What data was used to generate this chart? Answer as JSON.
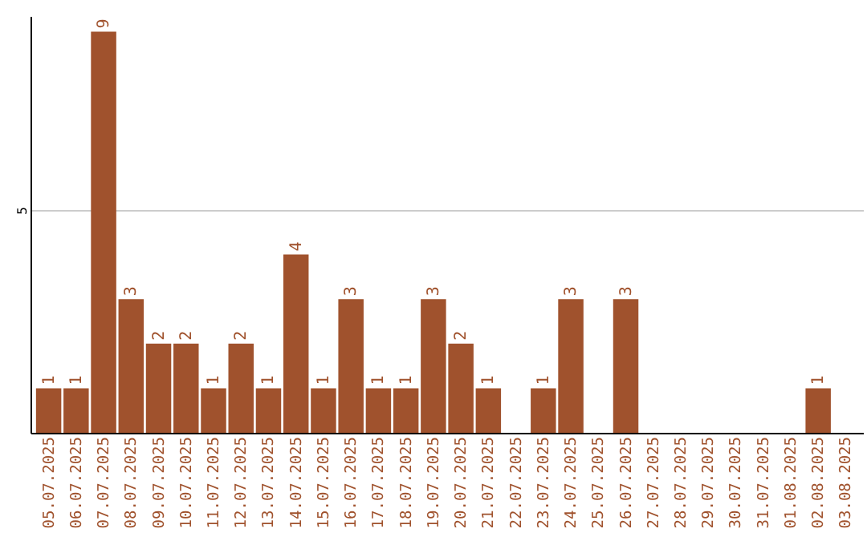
{
  "chart_data": {
    "type": "bar",
    "categories": [
      "05.07.2025",
      "06.07.2025",
      "07.07.2025",
      "08.07.2025",
      "09.07.2025",
      "10.07.2025",
      "11.07.2025",
      "12.07.2025",
      "13.07.2025",
      "14.07.2025",
      "15.07.2025",
      "16.07.2025",
      "17.07.2025",
      "18.07.2025",
      "19.07.2025",
      "20.07.2025",
      "21.07.2025",
      "22.07.2025",
      "23.07.2025",
      "24.07.2025",
      "25.07.2025",
      "26.07.2025",
      "27.07.2025",
      "28.07.2025",
      "29.07.2025",
      "30.07.2025",
      "31.07.2025",
      "01.08.2025",
      "02.08.2025",
      "03.08.2025"
    ],
    "values": [
      1,
      1,
      9,
      3,
      2,
      2,
      1,
      2,
      1,
      4,
      1,
      3,
      1,
      1,
      3,
      2,
      1,
      null,
      1,
      3,
      null,
      3,
      null,
      null,
      null,
      null,
      null,
      null,
      1,
      null
    ],
    "color": "#a0522d",
    "ylim": [
      0,
      9.35
    ],
    "yticks": [
      5
    ],
    "grid": "y",
    "data_labels": true
  }
}
